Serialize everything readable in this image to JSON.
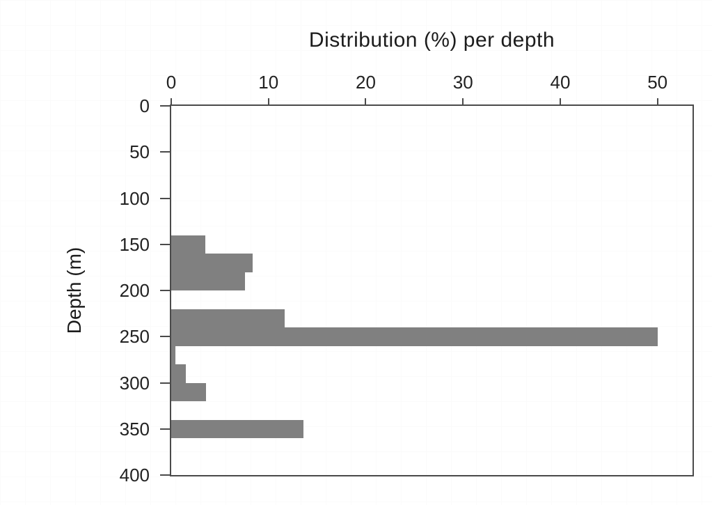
{
  "figure": {
    "background_color": "#ffffff",
    "faint_grid_color": "#fbfbfb"
  },
  "chart_data": {
    "type": "bar",
    "orientation": "horizontal",
    "title": "Distribution (%) per depth",
    "ylabel": "Depth (m)",
    "xlabel": "",
    "x_ticks": [
      0,
      10,
      20,
      30,
      40,
      50
    ],
    "y_ticks": [
      0,
      50,
      100,
      150,
      200,
      250,
      300,
      350,
      400
    ],
    "xlim": [
      0,
      53.6
    ],
    "ylim": [
      0,
      400
    ],
    "grid": false,
    "legend": "none",
    "bin_size_m": 20,
    "bar_color": "#808080",
    "axis_color": "#4a4a4a",
    "text_color": "#222222",
    "bars": [
      {
        "depth_from": 140,
        "depth_to": 160,
        "value": 3.5
      },
      {
        "depth_from": 160,
        "depth_to": 180,
        "value": 8.4
      },
      {
        "depth_from": 180,
        "depth_to": 200,
        "value": 7.6
      },
      {
        "depth_from": 220,
        "depth_to": 240,
        "value": 11.7
      },
      {
        "depth_from": 240,
        "depth_to": 260,
        "value": 50.0
      },
      {
        "depth_from": 260,
        "depth_to": 280,
        "value": 0.4
      },
      {
        "depth_from": 280,
        "depth_to": 300,
        "value": 1.5
      },
      {
        "depth_from": 300,
        "depth_to": 320,
        "value": 3.6
      },
      {
        "depth_from": 340,
        "depth_to": 360,
        "value": 13.6
      }
    ]
  }
}
